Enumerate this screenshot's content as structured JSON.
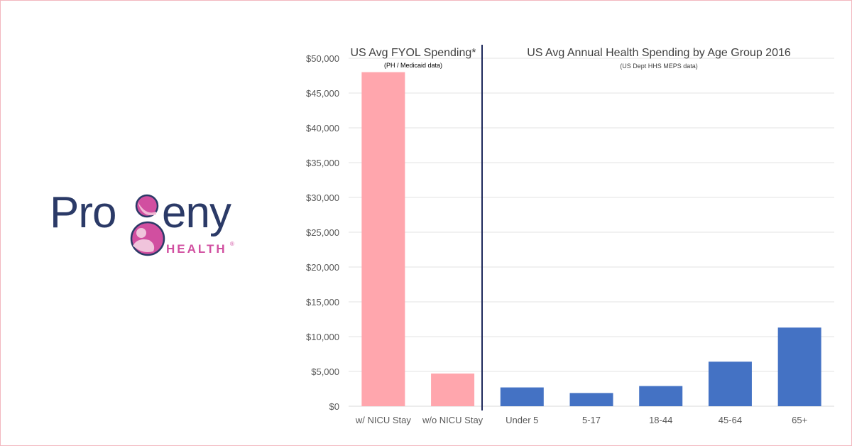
{
  "logo": {
    "word": "Progeny",
    "sub": "HEALTH",
    "mark": "®"
  },
  "colors": {
    "pink_bar": "#ffa6ad",
    "blue_bar": "#4472c4",
    "divider": "#1f2a5c",
    "logo_navy": "#2b3a67",
    "logo_magenta": "#d14fa0"
  },
  "chart_data": {
    "type": "bar",
    "panels": [
      {
        "title": "US Avg FYOL Spending*",
        "subtitle": "(PH / Medicaid data)"
      },
      {
        "title": "US Avg Annual Health Spending by Age Group 2016",
        "subtitle": "(US Dept HHS MEPS data)"
      }
    ],
    "categories": [
      "w/ NICU Stay",
      "w/o NICU Stay",
      "Under 5",
      "5-17",
      "18-44",
      "45-64",
      "65+"
    ],
    "values": [
      48000,
      4700,
      2700,
      1900,
      2900,
      6400,
      11300
    ],
    "bar_colors": [
      "#ffa6ad",
      "#ffa6ad",
      "#4472c4",
      "#4472c4",
      "#4472c4",
      "#4472c4",
      "#4472c4"
    ],
    "y_ticks": [
      "$0",
      "$5,000",
      "$10,000",
      "$15,000",
      "$20,000",
      "$25,000",
      "$30,000",
      "$35,000",
      "$40,000",
      "$45,000",
      "$50,000"
    ],
    "ylim": [
      0,
      50000
    ],
    "grid": true,
    "xlabel": "",
    "ylabel": ""
  }
}
